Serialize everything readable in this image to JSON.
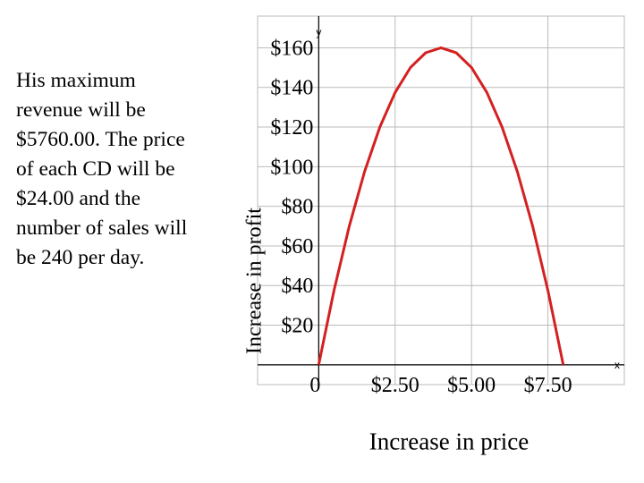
{
  "note_lines": [
    "His maximum",
    "revenue will be",
    "$5760.00.  The price",
    "of each CD will be",
    "$24.00 and the",
    "number of sales will",
    "be 240 per day."
  ],
  "chart_data": {
    "type": "line",
    "title": "",
    "xlabel": "Increase in price",
    "ylabel": "Increase in profit",
    "x_axis_letter": "x",
    "y_axis_letter": "y",
    "xlim": [
      -2,
      10
    ],
    "ylim": [
      -10,
      176
    ],
    "x_ticks": [
      {
        "value": 0,
        "label": "0"
      },
      {
        "value": 2.5,
        "label": "$2.50"
      },
      {
        "value": 5,
        "label": "$5.00"
      },
      {
        "value": 7.5,
        "label": "$7.50"
      }
    ],
    "y_ticks": [
      {
        "value": 20,
        "label": "$20"
      },
      {
        "value": 40,
        "label": "$40"
      },
      {
        "value": 60,
        "label": "$60"
      },
      {
        "value": 80,
        "label": "$80"
      },
      {
        "value": 100,
        "label": "$100"
      },
      {
        "value": 120,
        "label": "$120"
      },
      {
        "value": 140,
        "label": "$140"
      },
      {
        "value": 160,
        "label": "$160"
      }
    ],
    "series": [
      {
        "color": "#d42020",
        "x": [
          0,
          0.5,
          1,
          1.5,
          2,
          2.5,
          3,
          3.5,
          4,
          4.5,
          5,
          5.5,
          6,
          6.5,
          7,
          7.5,
          8
        ],
        "y": [
          0,
          37.5,
          70,
          97.5,
          120,
          137.5,
          150,
          157.5,
          160,
          157.5,
          150,
          137.5,
          120,
          97.5,
          70,
          37.5,
          0
        ]
      }
    ],
    "grid": true,
    "grid_color": "#bbbbbb"
  }
}
